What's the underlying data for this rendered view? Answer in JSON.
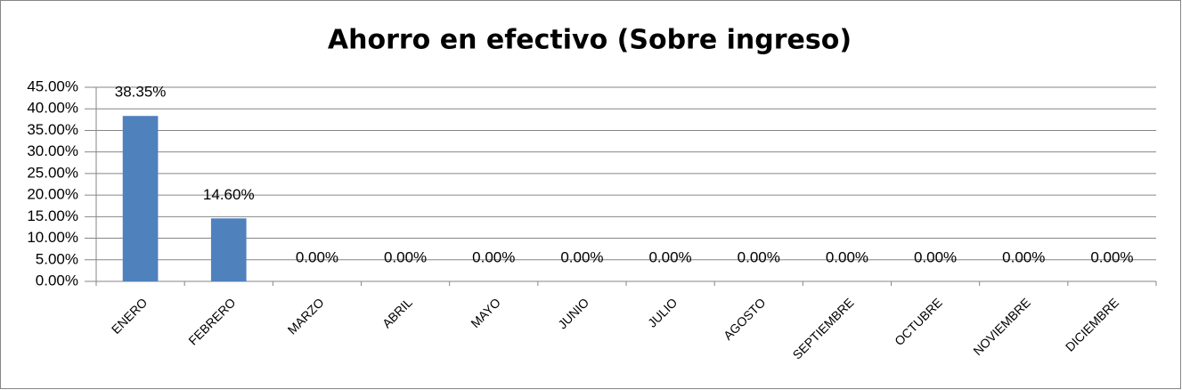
{
  "chart_data": {
    "type": "bar",
    "title": "Ahorro en efectivo (Sobre ingreso)",
    "categories": [
      "ENERO",
      "FEBRERO",
      "MARZO",
      "ABRIL",
      "MAYO",
      "JUNIO",
      "JULIO",
      "AGOSTO",
      "SEPTIEMBRE",
      "OCTUBRE",
      "NOVIEMBRE",
      "DICIEMBRE"
    ],
    "values": [
      38.35,
      14.6,
      0,
      0,
      0,
      0,
      0,
      0,
      0,
      0,
      0,
      0
    ],
    "value_labels": [
      "38.35%",
      "14.60%",
      "0.00%",
      "0.00%",
      "0.00%",
      "0.00%",
      "0.00%",
      "0.00%",
      "0.00%",
      "0.00%",
      "0.00%",
      "0.00%"
    ],
    "color": "#4f81bd",
    "ylim": [
      0,
      45
    ],
    "yticks": [
      {
        "value": 0,
        "label": "0.00%"
      },
      {
        "value": 5,
        "label": "5.00%"
      },
      {
        "value": 10,
        "label": "10.00%"
      },
      {
        "value": 15,
        "label": "15.00%"
      },
      {
        "value": 20,
        "label": "20.00%"
      },
      {
        "value": 25,
        "label": "25.00%"
      },
      {
        "value": 30,
        "label": "30.00%"
      },
      {
        "value": 35,
        "label": "35.00%"
      },
      {
        "value": 40,
        "label": "40.00%"
      },
      {
        "value": 45,
        "label": "45.00%"
      }
    ],
    "grid": true
  }
}
